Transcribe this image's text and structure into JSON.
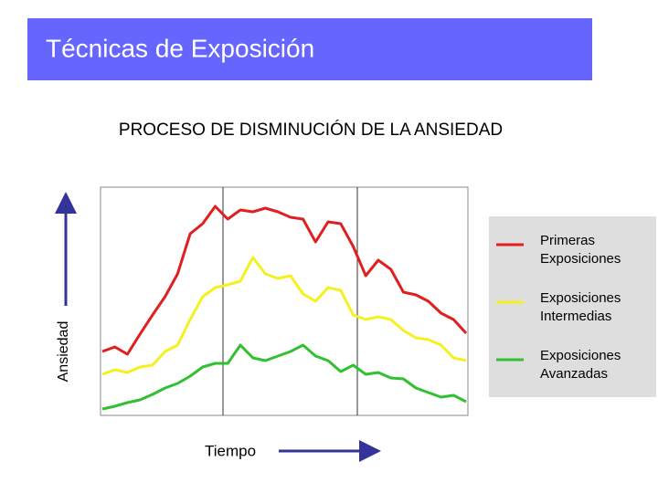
{
  "chart_data": {
    "type": "line",
    "header": "Técnicas de Exposición",
    "title": "PROCESO DE DISMINUCIÓN DE LA ANSIEDAD",
    "xlabel": "Tiempo",
    "ylabel": "Ansiedad",
    "ylim": [
      0,
      100
    ],
    "series": [
      {
        "name": [
          "Primeras",
          "Exposiciones"
        ],
        "color": "#e02020",
        "values": [
          28,
          30,
          26.8,
          35.6,
          44,
          52,
          62,
          79.6,
          84,
          91.6,
          86,
          90,
          89.2,
          90.8,
          89.2,
          86.8,
          86,
          76,
          84.8,
          84,
          74,
          61.2,
          68,
          64,
          54,
          52.8,
          50,
          44.8,
          42,
          36
        ]
      },
      {
        "name": [
          "Exposiciones",
          "Intermedias"
        ],
        "color": "#f5f020",
        "values": [
          18,
          20,
          18.8,
          21.2,
          22,
          28,
          30.8,
          42,
          52,
          56,
          57.2,
          58.8,
          69.2,
          62,
          60,
          61.2,
          53.2,
          50,
          56,
          54.8,
          44,
          42,
          43.2,
          42,
          37.2,
          34,
          33.2,
          30.8,
          25.2,
          24
        ]
      },
      {
        "name": [
          "Exposiciones",
          "Avanzadas"
        ],
        "color": "#30c030",
        "values": [
          2.8,
          4,
          5.6,
          6.8,
          9.2,
          12,
          14,
          17.2,
          21.2,
          22.8,
          22.8,
          30.8,
          25.2,
          24,
          26,
          28,
          30.8,
          26,
          24,
          19.2,
          22,
          18,
          18.8,
          16.4,
          16,
          12,
          10,
          8,
          8.8,
          6
        ]
      }
    ]
  }
}
